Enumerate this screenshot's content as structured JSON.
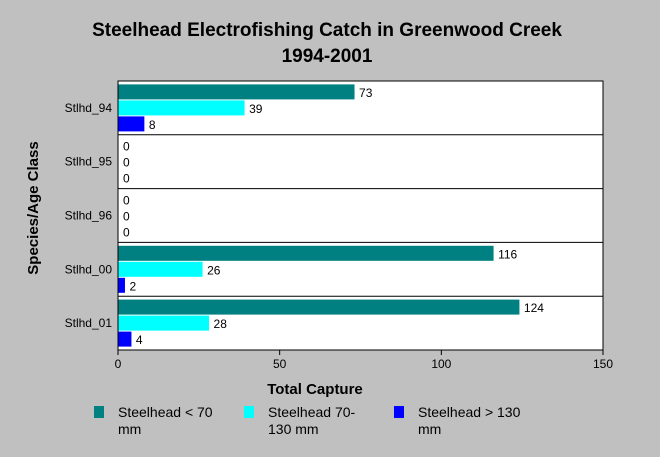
{
  "chart_data": {
    "type": "bar",
    "orientation": "horizontal",
    "title": "Steelhead Electrofishing Catch in Greenwood Creek 1994-2001",
    "xlabel": "Total Capture",
    "ylabel": "Species/Age Class",
    "categories": [
      "Stlhd_94",
      "Stlhd_95",
      "Stlhd_96",
      "Stlhd_00",
      "Stlhd_01"
    ],
    "series": [
      {
        "name": "Steelhead < 70 mm",
        "color": "#008080",
        "values": [
          73,
          0,
          0,
          116,
          124
        ]
      },
      {
        "name": "Steelhead 70-130 mm",
        "color": "#00ffff",
        "values": [
          39,
          0,
          0,
          26,
          28
        ]
      },
      {
        "name": "Steelhead > 130 mm",
        "color": "#0000ff",
        "values": [
          8,
          0,
          0,
          2,
          4
        ]
      }
    ],
    "xlim": [
      0,
      150
    ],
    "xticks": [
      0,
      50,
      100,
      150
    ],
    "grid": false,
    "legend_position": "bottom"
  }
}
